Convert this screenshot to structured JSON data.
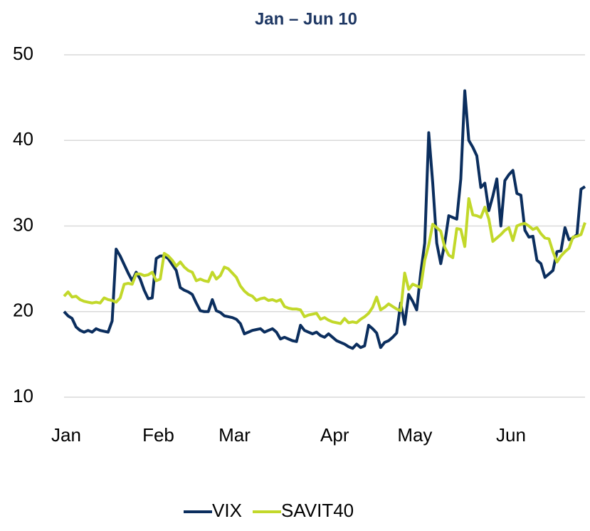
{
  "chart_data": {
    "type": "line",
    "title": "Jan – Jun 10",
    "categories": [
      "Jan",
      null,
      null,
      null,
      null,
      null,
      null,
      null,
      null,
      null,
      null,
      null,
      null,
      null,
      null,
      null,
      null,
      null,
      null,
      null,
      null,
      null,
      null,
      "Feb",
      null,
      null,
      null,
      null,
      null,
      null,
      null,
      null,
      null,
      null,
      null,
      null,
      null,
      null,
      null,
      null,
      null,
      null,
      "Mar",
      null,
      null,
      null,
      null,
      null,
      null,
      null,
      null,
      null,
      null,
      null,
      null,
      null,
      null,
      null,
      null,
      null,
      null,
      null,
      null,
      null,
      null,
      null,
      null,
      "Apr",
      null,
      null,
      null,
      null,
      null,
      null,
      null,
      null,
      null,
      null,
      null,
      null,
      null,
      null,
      null,
      null,
      null,
      null,
      null,
      "May",
      null,
      null,
      null,
      null,
      null,
      null,
      null,
      null,
      null,
      null,
      null,
      null,
      null,
      null,
      null,
      null,
      null,
      null,
      null,
      null,
      null,
      null,
      null,
      "Jun",
      null,
      null,
      null,
      null,
      null,
      null,
      null,
      null,
      null,
      null,
      null,
      null,
      null,
      null,
      null,
      null,
      null,
      null,
      null
    ],
    "series": [
      {
        "name": "VIX",
        "color": "#0b2e5e",
        "values": [
          20,
          19.5,
          19.2,
          18.2,
          17.8,
          17.6,
          17.8,
          17.6,
          18,
          17.8,
          17.7,
          17.6,
          18.9,
          27.3,
          26.5,
          25.5,
          24.5,
          23.6,
          24.6,
          23.8,
          22.5,
          21.5,
          21.6,
          26.2,
          26.5,
          26.5,
          26.2,
          25.5,
          24.8,
          22.8,
          22.5,
          22.3,
          22,
          21,
          20.1,
          20,
          20,
          21.4,
          20.1,
          19.9,
          19.5,
          19.4,
          19.3,
          19.1,
          18.6,
          17.4,
          17.6,
          17.8,
          17.9,
          18.0,
          17.6,
          17.8,
          18.0,
          17.6,
          16.8,
          17,
          16.8,
          16.6,
          16.5,
          18.4,
          17.8,
          17.6,
          17.4,
          17.6,
          17.2,
          17.0,
          17.4,
          17.0,
          16.6,
          16.4,
          16.2,
          15.9,
          15.7,
          16.2,
          15.8,
          16.0,
          18.4,
          18.0,
          17.5,
          15.8,
          16.4,
          16.6,
          17.0,
          17.5,
          21.0,
          18.5,
          22.0,
          21.2,
          20.2,
          24.5,
          28.0,
          40.9,
          35,
          28,
          25.6,
          28,
          31.2,
          31,
          30.8,
          35.5,
          45.8,
          40.0,
          39.2,
          38.2,
          34.5,
          35.0,
          31.8,
          33.5,
          35.5,
          30.0,
          35.3,
          36.0,
          36.5,
          33.8,
          33.6,
          29.5,
          28.7,
          28.8,
          26,
          25.6,
          24,
          24.4,
          24.8,
          27.0,
          27.1,
          29.8,
          28.4,
          28.6,
          29,
          34.3,
          34.6
        ]
      },
      {
        "name": "SAVIT40",
        "color": "#c2d82a",
        "values": [
          21.8,
          22.3,
          21.7,
          21.8,
          21.4,
          21.2,
          21.1,
          21.0,
          21.1,
          21.0,
          21.6,
          21.4,
          21.3,
          21.1,
          21.6,
          23.2,
          23.3,
          23.2,
          24.4,
          24.4,
          24.2,
          24.3,
          24.6,
          23.6,
          23.8,
          26.8,
          26.5,
          26.0,
          25.3,
          25.8,
          25.2,
          24.8,
          24.6,
          23.6,
          23.8,
          23.6,
          23.5,
          24.6,
          23.8,
          24.2,
          25.2,
          25.0,
          24.5,
          24.0,
          23.0,
          22.4,
          22.0,
          21.8,
          21.3,
          21.5,
          21.6,
          21.3,
          21.4,
          21.2,
          21.4,
          20.6,
          20.4,
          20.3,
          20.3,
          20.2,
          19.4,
          19.6,
          19.7,
          19.8,
          19.1,
          19.3,
          19.0,
          18.8,
          18.7,
          18.6,
          19.2,
          18.7,
          18.8,
          18.7,
          19.1,
          19.4,
          19.8,
          20.5,
          21.7,
          20.2,
          20.5,
          20.9,
          20.6,
          20.3,
          20.1,
          24.5,
          22.6,
          23.2,
          23.0,
          22.8,
          26.0,
          27.8,
          30.2,
          29.8,
          29.4,
          27.5,
          26.6,
          26.3,
          29.7,
          29.6,
          27.6,
          33.2,
          31.3,
          31.2,
          31.0,
          32.2,
          30.8,
          28.2,
          28.6,
          29.0,
          29.5,
          29.8,
          28.3,
          30.0,
          30.2,
          30.3,
          30.0,
          29.6,
          29.8,
          29.1,
          28.6,
          28.5,
          27.0,
          25.8,
          26.5,
          27.0,
          27.4,
          28.7,
          28.8,
          29.0,
          30.4
        ]
      }
    ],
    "ylim": [
      10,
      50
    ],
    "yticks": [
      10,
      20,
      30,
      40,
      50
    ],
    "grid": true,
    "legend": "bottom"
  }
}
